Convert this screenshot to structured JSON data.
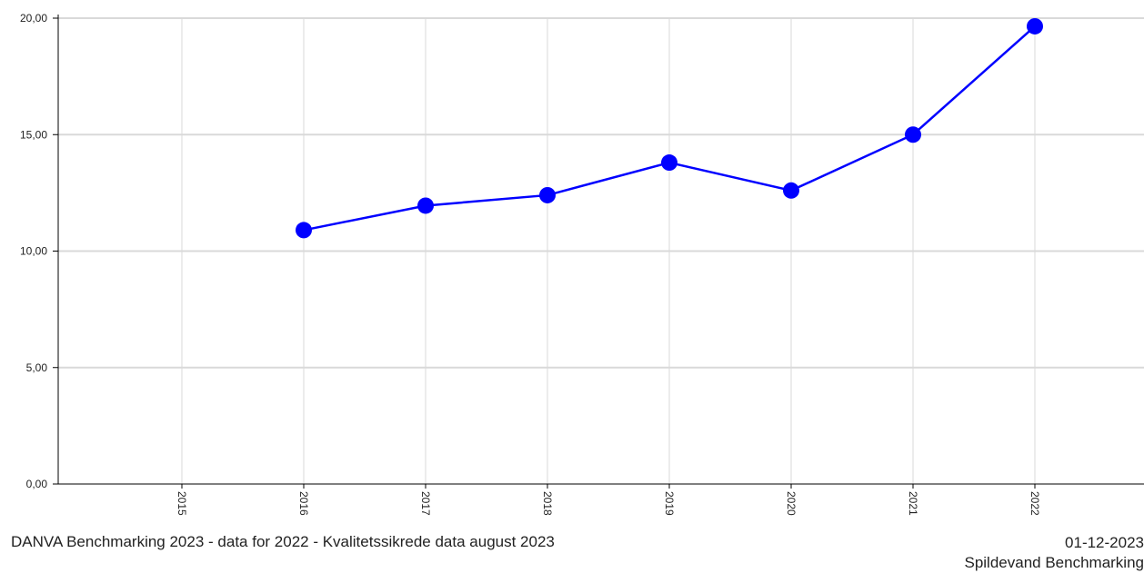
{
  "chart_data": {
    "type": "line",
    "categories": [
      "2015",
      "2016",
      "2017",
      "2018",
      "2019",
      "2020",
      "2021",
      "2022"
    ],
    "series": [
      {
        "values": [
          null,
          10.9,
          11.95,
          12.4,
          13.8,
          12.6,
          15.0,
          19.65
        ]
      }
    ],
    "y_ticks": [
      "0,00",
      "5,00",
      "10,00",
      "15,00",
      "20,00"
    ],
    "ylim": [
      0,
      20
    ],
    "grid": true,
    "colors": {
      "line": "#0000ff",
      "marker": "#0000ff",
      "grid": "#d9d9d9",
      "axis": "#000000"
    }
  },
  "footer": {
    "source": "DANVA Benchmarking 2023 - data for 2022 - Kvalitetssikrede data august 2023",
    "date": "01-12-2023",
    "product": "Spildevand Benchmarking"
  }
}
